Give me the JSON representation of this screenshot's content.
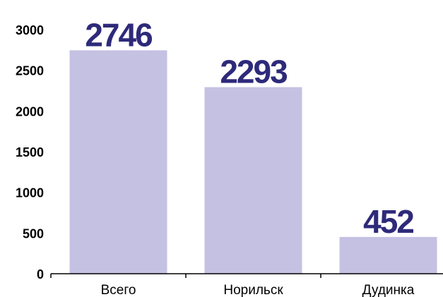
{
  "chart_data": {
    "type": "bar",
    "categories": [
      "Всего",
      "Норильск",
      "Дудинка"
    ],
    "values": [
      2746,
      2293,
      452
    ],
    "color": "#c5c1e3",
    "label_color": "#2e2a7a",
    "ylim": [
      0,
      3000
    ],
    "yticks": [
      0,
      500,
      1000,
      1500,
      2000,
      2500,
      3000
    ],
    "grid": false
  }
}
